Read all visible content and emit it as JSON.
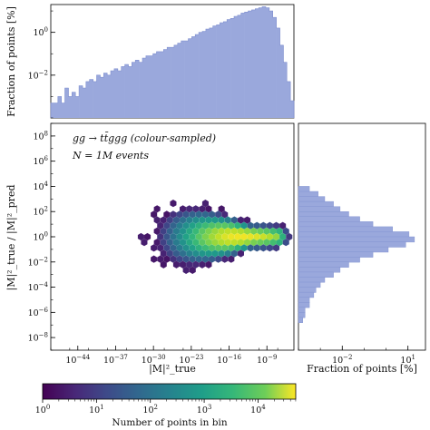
{
  "chart_data": [
    {
      "id": "main",
      "type": "heatmap",
      "subtype": "hexbin",
      "xlabel": "|M|²_true",
      "ylabel": "|M|²_true / |M|²_pred",
      "x_scale": "log",
      "y_scale": "log",
      "xlim_exp": [
        -49,
        -4
      ],
      "ylim_exp": [
        -9,
        9
      ],
      "x_tick_labels": [
        "10^-44",
        "10^-37",
        "10^-30",
        "10^-23",
        "10^-16",
        "10^-9"
      ],
      "x_tick_exps": [
        -44,
        -37,
        -30,
        -23,
        -16,
        -9
      ],
      "y_tick_labels": [
        "10^-8",
        "10^-6",
        "10^-4",
        "10^-2",
        "10^0",
        "10^2",
        "10^4",
        "10^6",
        "10^8"
      ],
      "y_tick_exps": [
        -8,
        -6,
        -4,
        -2,
        0,
        2,
        4,
        6,
        8
      ],
      "annotations": [
        "gg → tt̄ggg (colour-sampled)",
        "N = 1M events"
      ],
      "colorbar": {
        "label": "Number of points in bin",
        "scale": "log",
        "range_exp": [
          0,
          4.7
        ],
        "tick_labels": [
          "10^0",
          "10^1",
          "10^2",
          "10^3",
          "10^4"
        ],
        "tick_exps": [
          0,
          1,
          2,
          3,
          4
        ],
        "colormap": "viridis"
      },
      "density_model": {
        "core_center_exp": [
          -14,
          0
        ],
        "core_spread_exp": [
          6,
          0.5
        ]
      }
    },
    {
      "id": "top_histogram",
      "type": "bar",
      "subtype": "histogram",
      "ylabel": "Fraction of points [%]",
      "y_scale": "log",
      "ylim_exp": [
        -4,
        1.3
      ],
      "y_tick_labels": [
        "10^0",
        "10^-2"
      ],
      "y_tick_exps": [
        0,
        -2
      ],
      "color": "#9aa8dc",
      "bin_edges_exp": [
        -49,
        -4
      ],
      "values_log10": [
        -3.3,
        -3.3,
        -3.0,
        -3.3,
        -2.6,
        -3.0,
        -2.8,
        -3.0,
        -2.5,
        -2.6,
        -2.3,
        -2.2,
        -2.3,
        -2.0,
        -2.1,
        -1.9,
        -2.0,
        -1.8,
        -1.7,
        -1.8,
        -1.6,
        -1.5,
        -1.6,
        -1.4,
        -1.3,
        -1.4,
        -1.2,
        -1.1,
        -1.1,
        -1.0,
        -0.9,
        -0.9,
        -0.8,
        -0.7,
        -0.7,
        -0.6,
        -0.5,
        -0.4,
        -0.4,
        -0.3,
        -0.2,
        -0.1,
        0.0,
        0.05,
        0.15,
        0.2,
        0.3,
        0.35,
        0.45,
        0.5,
        0.6,
        0.65,
        0.75,
        0.8,
        0.9,
        0.95,
        1.0,
        1.05,
        1.1,
        1.15,
        1.2,
        1.15,
        1.0,
        0.7,
        0.2,
        -0.6,
        -1.4,
        -2.3,
        -3.2
      ]
    },
    {
      "id": "right_histogram",
      "type": "bar",
      "subtype": "histogram",
      "orientation": "horizontal",
      "xlabel": "Fraction of points [%]",
      "x_scale": "log",
      "xlim_exp": [
        -4,
        1.8
      ],
      "x_tick_labels": [
        "10^-2",
        "10^1"
      ],
      "x_tick_exps": [
        -2,
        1
      ],
      "color": "#9aa8dc",
      "bins_y_exp": [
        3.8,
        3.4,
        3.0,
        2.6,
        2.2,
        1.8,
        1.4,
        1.0,
        0.6,
        0.2,
        -0.2,
        -0.6,
        -1.0,
        -1.4,
        -1.8,
        -2.2,
        -2.6,
        -3.0,
        -3.4,
        -3.8,
        -4.2,
        -4.6,
        -5.0,
        -5.4,
        -5.8,
        -6.2,
        -6.6
      ],
      "values_log10": [
        -3.5,
        -3.1,
        -2.8,
        -2.4,
        -2.1,
        -1.7,
        -1.2,
        -0.6,
        0.3,
        1.05,
        1.3,
        0.9,
        0.1,
        -0.6,
        -1.2,
        -1.7,
        -2.1,
        -2.4,
        -2.8,
        -3.0,
        -3.2,
        -3.3,
        -3.5,
        -3.5,
        -3.7,
        -3.7,
        -3.8
      ]
    }
  ]
}
